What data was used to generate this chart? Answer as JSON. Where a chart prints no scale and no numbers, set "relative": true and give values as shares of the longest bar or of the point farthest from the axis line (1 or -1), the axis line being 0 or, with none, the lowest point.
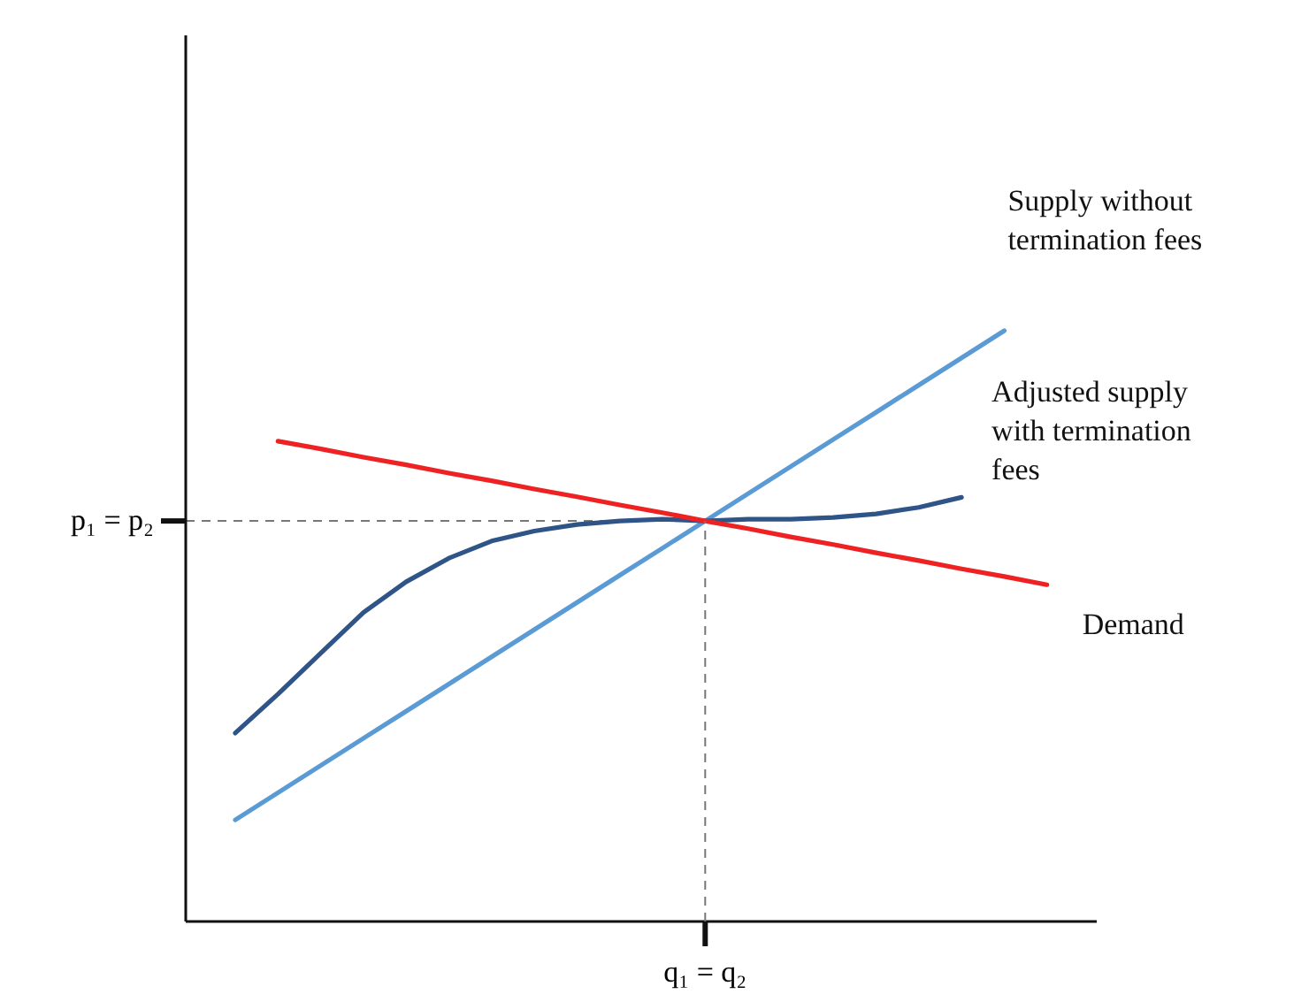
{
  "chart_data": {
    "type": "line",
    "relative": true,
    "categories": [
      null,
      null,
      null,
      null,
      null,
      null,
      null,
      null,
      null,
      null,
      null,
      null,
      null,
      null,
      null,
      null,
      null,
      null,
      null,
      null,
      null
    ],
    "series": [
      {
        "name": "Supply without termination fees",
        "color": "#5b9bd5",
        "values": [
          0.172,
          0.218,
          0.264,
          0.31,
          0.356,
          0.402,
          0.448,
          0.494,
          0.54,
          0.586,
          0.632,
          0.678,
          0.724,
          0.77,
          0.816,
          0.862,
          0.908,
          0.954,
          1,
          null,
          null
        ]
      },
      {
        "name": "Adjusted supply with termination fees",
        "color": "#2f5487",
        "values": [
          0.319,
          0.385,
          0.454,
          0.523,
          0.575,
          0.615,
          0.644,
          0.661,
          0.672,
          0.678,
          0.681,
          0.678,
          0.681,
          0.681,
          0.684,
          0.69,
          0.701,
          0.718,
          null,
          null,
          null
        ]
      },
      {
        "name": "Demand",
        "color": "#ee2222",
        "values": [
          null,
          0.813,
          0.8,
          0.786,
          0.773,
          0.759,
          0.746,
          0.732,
          0.719,
          0.705,
          0.692,
          0.678,
          0.665,
          0.651,
          0.638,
          0.624,
          0.611,
          0.597,
          0.584,
          0.57,
          null
        ]
      }
    ],
    "ref_lines": [
      {
        "axis": "y",
        "value": 0.678,
        "label": "p₁ = p₂",
        "line_style": "dashed"
      }
    ],
    "annotations": [
      "q₁ = q₂"
    ],
    "marker": "none",
    "line_style": "solid"
  }
}
